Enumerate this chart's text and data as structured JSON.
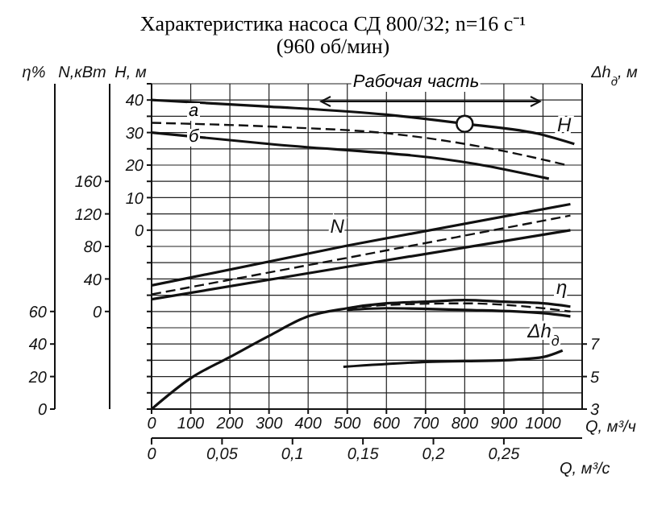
{
  "chart_data": [
    {
      "type": "line",
      "title": "Характеристика насоса СД 800/32; n=16 с⁻¹",
      "subtitle": "(960 об/мин)",
      "xlabel": "Q, м³/ч",
      "x2label": "Q, м³/с",
      "ylabel": "Н, м",
      "y2label": "N,кВт",
      "y3label": "η%",
      "xlim": [
        0,
        1100
      ],
      "xticks": [
        0,
        100,
        200,
        300,
        400,
        500,
        600,
        700,
        800,
        900,
        1000
      ],
      "x2lim": [
        0,
        0.30556
      ],
      "x2ticks": [
        0,
        {
          "value": 0.05,
          "label": "0,05"
        },
        {
          "value": 0.1,
          "label": "0,1"
        },
        {
          "value": 0.15,
          "label": "0,15"
        },
        {
          "value": 0.2,
          "label": "0,2"
        },
        {
          "value": 0.25,
          "label": "0,25"
        }
      ],
      "ylim": [
        -55,
        45
      ],
      "yticks": [
        {
          "value": -55,
          "label": null
        },
        {
          "value": -50,
          "label": null
        },
        {
          "value": -45,
          "label": null
        },
        {
          "value": -40,
          "label": null
        },
        {
          "value": -35,
          "label": null
        },
        {
          "value": -30,
          "label": null
        },
        {
          "value": -25,
          "label": null
        },
        {
          "value": -20,
          "label": null
        },
        {
          "value": -15,
          "label": null
        },
        {
          "value": -10,
          "label": null
        },
        {
          "value": -5,
          "label": null
        },
        0,
        {
          "value": 5,
          "label": null
        },
        10,
        {
          "value": 15,
          "label": null
        },
        20,
        {
          "value": 25,
          "label": null
        },
        30,
        {
          "value": 35,
          "label": null
        },
        40,
        {
          "value": 45,
          "label": null
        }
      ],
      "y2lim": [
        -120,
        280
      ],
      "y2ticks": [
        0,
        40,
        80,
        120,
        160
      ],
      "y3lim": [
        0,
        200
      ],
      "y3ticks": [
        0,
        20,
        40,
        60
      ],
      "grid": true,
      "legend": false,
      "marker": "none",
      "series": [
        {
          "name": "H",
          "color": "#111111",
          "line_style": "solid",
          "x": [
            0,
            300,
            600,
            800,
            1000,
            1080
          ],
          "values": [
            40,
            38,
            35.5,
            32.7,
            29.3,
            26.5
          ]
        },
        {
          "color": "#111111",
          "line_style": "dashed",
          "x": [
            0,
            350,
            600,
            900,
            1060
          ],
          "values": [
            33,
            31.6,
            29.8,
            24.3,
            20
          ]
        },
        {
          "color": "#111111",
          "line_style": "solid",
          "x": [
            0,
            300,
            830,
            1015
          ],
          "values": [
            30,
            26.5,
            20.3,
            15.8
          ]
        },
        {
          "type": "scatter",
          "marker": "circle",
          "color": "#111111",
          "x": [
            800
          ],
          "values": [
            32.7
          ]
        },
        {
          "name": "N",
          "axis": "y2",
          "color": "#111111",
          "line_style": "solid",
          "x": [
            0,
            500,
            1070
          ],
          "values": [
            32,
            81,
            132
          ]
        },
        {
          "axis": "y2",
          "color": "#111111",
          "line_style": "dashed",
          "x": [
            0,
            500,
            1070
          ],
          "values": [
            21,
            66,
            118
          ]
        },
        {
          "axis": "y2",
          "color": "#111111",
          "line_style": "solid",
          "x": [
            0,
            500,
            1070
          ],
          "values": [
            15,
            55,
            100
          ]
        },
        {
          "name": "η",
          "axis": "y3",
          "color": "#111111",
          "line_style": "solid",
          "x": [
            0,
            100,
            200,
            300,
            400,
            500,
            600,
            700,
            800,
            900,
            1000,
            1070
          ],
          "values": [
            0,
            19,
            32,
            45,
            57,
            62,
            65,
            66,
            67,
            66,
            65,
            63
          ]
        },
        {
          "axis": "y3",
          "color": "#111111",
          "line_style": "dashed",
          "x": [
            500,
            600,
            800,
            1000,
            1070
          ],
          "values": [
            62,
            64,
            65,
            62,
            60
          ]
        },
        {
          "axis": "y3",
          "color": "#111111",
          "line_style": "solid",
          "x": [
            500,
            600,
            800,
            1000,
            1070
          ],
          "values": [
            61,
            62,
            61,
            59,
            57
          ]
        }
      ],
      "annotations": [
        "Рабочая часть",
        "а",
        "б"
      ]
    },
    {
      "type": "line",
      "ylabel": "Δh$_{д}$, м",
      "xlim": [
        0,
        1100
      ],
      "ylim": [
        3,
        23
      ],
      "yticks": [
        3,
        5,
        7
      ],
      "tick_labels": "y",
      "marker": "none",
      "series": [
        {
          "name": "Δh$_{д}$",
          "color": "#111111",
          "line_style": "solid",
          "x": [
            490,
            700,
            900,
            1000,
            1050
          ],
          "values": [
            5.6,
            5.9,
            6,
            6.2,
            6.6
          ]
        }
      ]
    }
  ]
}
